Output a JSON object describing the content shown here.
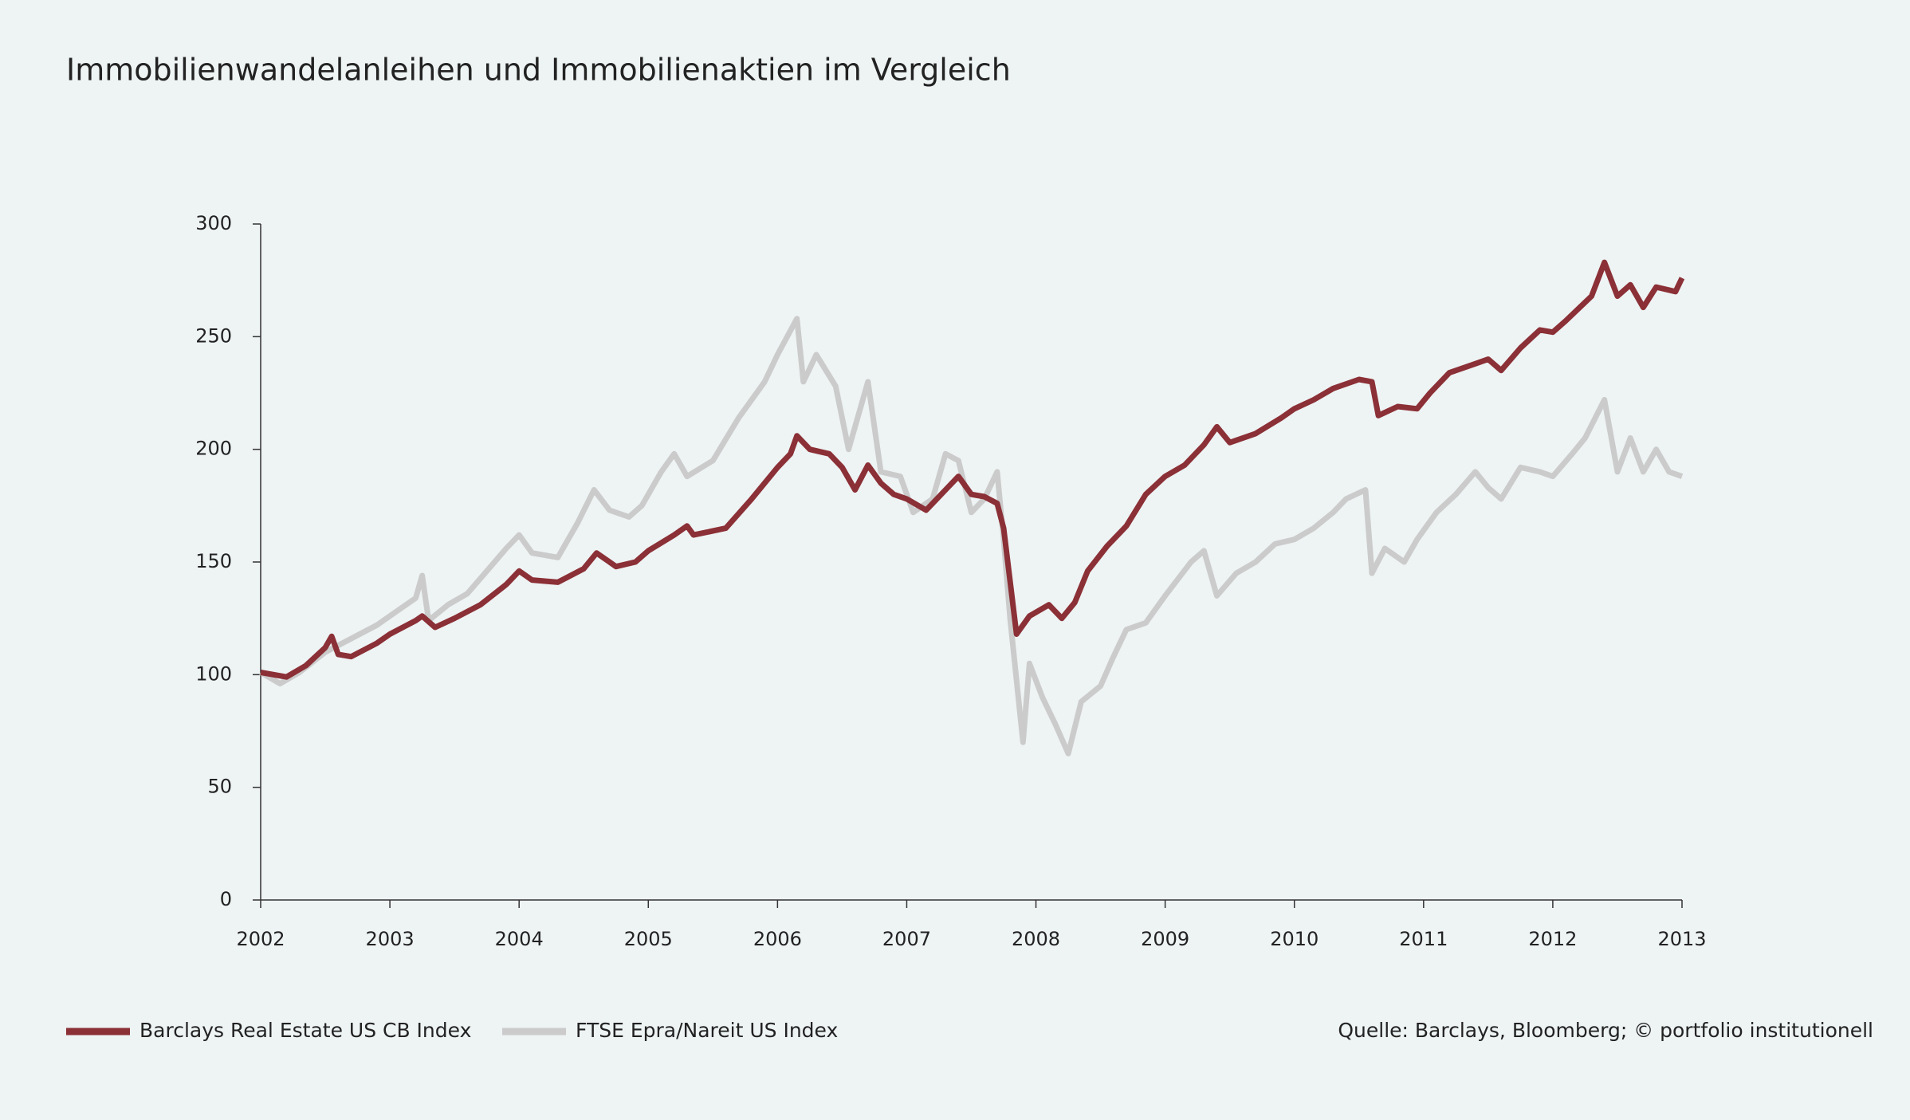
{
  "chart_data": {
    "type": "line",
    "title": "Immobilienwandelanleihen und Immobilienaktien im Vergleich",
    "source": "Quelle: Barclays, Bloomberg; © portfolio institutionell",
    "xlim": [
      2002,
      2013
    ],
    "xticks": [
      2002,
      2003,
      2004,
      2005,
      2006,
      2007,
      2008,
      2009,
      2010,
      2011,
      2012,
      2013
    ],
    "ylim": [
      0,
      300
    ],
    "yticks": [
      0,
      50,
      100,
      150,
      200,
      250,
      300
    ],
    "grid": false,
    "legend": "bottom-left",
    "series": [
      {
        "name": "Barclays Real Estate US CB Index",
        "color": "#8b3036",
        "x": [
          2002.0,
          2002.2,
          2002.35,
          2002.5,
          2002.55,
          2002.6,
          2002.7,
          2002.9,
          2003.0,
          2003.2,
          2003.25,
          2003.35,
          2003.5,
          2003.7,
          2003.9,
          2004.0,
          2004.1,
          2004.3,
          2004.5,
          2004.6,
          2004.75,
          2004.9,
          2005.0,
          2005.2,
          2005.3,
          2005.35,
          2005.6,
          2005.8,
          2006.0,
          2006.1,
          2006.15,
          2006.25,
          2006.4,
          2006.5,
          2006.6,
          2006.7,
          2006.8,
          2006.9,
          2007.0,
          2007.15,
          2007.3,
          2007.4,
          2007.5,
          2007.6,
          2007.7,
          2007.75,
          2007.85,
          2007.95,
          2008.1,
          2008.2,
          2008.3,
          2008.4,
          2008.55,
          2008.7,
          2008.85,
          2009.0,
          2009.15,
          2009.3,
          2009.4,
          2009.5,
          2009.7,
          2009.9,
          2010.0,
          2010.15,
          2010.3,
          2010.5,
          2010.6,
          2010.65,
          2010.8,
          2010.95,
          2011.05,
          2011.2,
          2011.4,
          2011.5,
          2011.6,
          2011.75,
          2011.9,
          2012.0,
          2012.1,
          2012.3,
          2012.4,
          2012.5,
          2012.6,
          2012.7,
          2012.8,
          2012.95,
          2013.0
        ],
        "values": [
          101,
          99,
          104,
          112,
          117,
          109,
          108,
          114,
          118,
          124,
          126,
          121,
          125,
          131,
          140,
          146,
          142,
          141,
          147,
          154,
          148,
          150,
          155,
          162,
          166,
          162,
          165,
          178,
          192,
          198,
          206,
          200,
          198,
          192,
          182,
          193,
          185,
          180,
          178,
          173,
          182,
          188,
          180,
          179,
          176,
          165,
          118,
          126,
          131,
          125,
          132,
          146,
          157,
          166,
          180,
          188,
          193,
          202,
          210,
          203,
          207,
          214,
          218,
          222,
          227,
          231,
          230,
          215,
          219,
          218,
          225,
          234,
          238,
          240,
          235,
          245,
          253,
          252,
          257,
          268,
          283,
          268,
          273,
          263,
          272,
          270,
          276
        ]
      },
      {
        "name": "FTSE Epra/Nareit US Index",
        "color": "#cbcbcb",
        "x": [
          2002.0,
          2002.15,
          2002.3,
          2002.5,
          2002.7,
          2002.9,
          2003.0,
          2003.2,
          2003.25,
          2003.3,
          2003.45,
          2003.6,
          2003.75,
          2003.9,
          2004.0,
          2004.1,
          2004.3,
          2004.45,
          2004.58,
          2004.7,
          2004.85,
          2004.95,
          2005.1,
          2005.2,
          2005.3,
          2005.5,
          2005.7,
          2005.9,
          2006.0,
          2006.15,
          2006.2,
          2006.3,
          2006.45,
          2006.55,
          2006.7,
          2006.8,
          2006.95,
          2007.05,
          2007.2,
          2007.3,
          2007.4,
          2007.5,
          2007.6,
          2007.7,
          2007.75,
          2007.8,
          2007.9,
          2007.95,
          2008.05,
          2008.15,
          2008.25,
          2008.35,
          2008.5,
          2008.6,
          2008.7,
          2008.85,
          2009.0,
          2009.2,
          2009.3,
          2009.4,
          2009.55,
          2009.7,
          2009.85,
          2010.0,
          2010.15,
          2010.3,
          2010.4,
          2010.55,
          2010.6,
          2010.7,
          2010.85,
          2010.95,
          2011.1,
          2011.25,
          2011.4,
          2011.5,
          2011.6,
          2011.75,
          2011.9,
          2012.0,
          2012.15,
          2012.25,
          2012.4,
          2012.5,
          2012.6,
          2012.7,
          2012.8,
          2012.9,
          2013.0
        ],
        "values": [
          101,
          96,
          101,
          110,
          116,
          122,
          126,
          134,
          144,
          124,
          131,
          136,
          146,
          156,
          162,
          154,
          152,
          167,
          182,
          173,
          170,
          175,
          190,
          198,
          188,
          195,
          214,
          230,
          242,
          258,
          230,
          242,
          228,
          200,
          230,
          190,
          188,
          172,
          178,
          198,
          195,
          172,
          178,
          190,
          160,
          125,
          70,
          105,
          90,
          78,
          65,
          88,
          95,
          108,
          120,
          123,
          135,
          150,
          155,
          135,
          145,
          150,
          158,
          160,
          165,
          172,
          178,
          182,
          145,
          156,
          150,
          160,
          172,
          180,
          190,
          183,
          178,
          192,
          190,
          188,
          198,
          205,
          222,
          190,
          205,
          190,
          200,
          190,
          188
        ]
      }
    ]
  }
}
